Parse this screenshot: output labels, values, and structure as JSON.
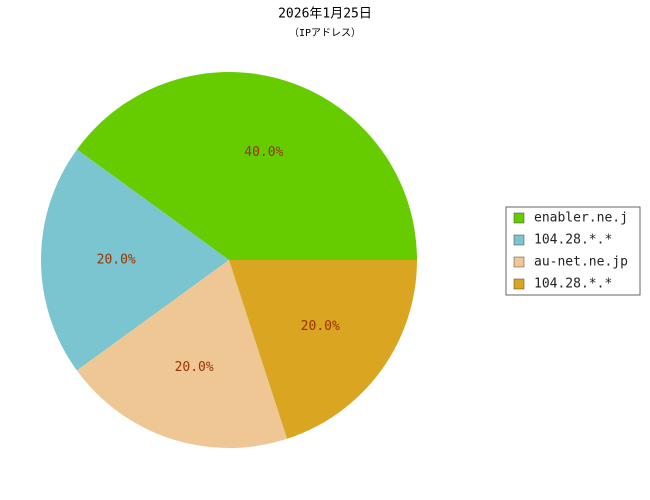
{
  "chart_data": {
    "type": "pie",
    "title": "2026年1月25日",
    "subtitle": "（IPアドレス）",
    "categories": [
      "enabler.ne.j",
      "104.28.*.*",
      "au-net.ne.jp",
      "104.28.*.*"
    ],
    "values": [
      40,
      20,
      20,
      20
    ],
    "value_labels": [
      "40.0%",
      "20.0%",
      "20.0%",
      "20.0%"
    ],
    "colors": [
      "#66cc00",
      "#7ac5cf",
      "#efc794",
      "#daa520"
    ],
    "legend": "right"
  }
}
